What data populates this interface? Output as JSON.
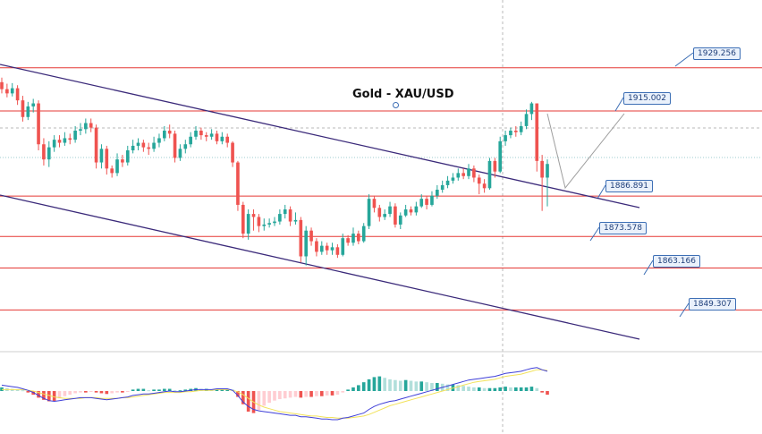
{
  "chart_data": {
    "type": "candlestick",
    "title": "Gold - XAU/USD",
    "colors": {
      "bull": "#26a69a",
      "bear": "#ef5350",
      "level": "#e53935",
      "channel": "#3b2a7a",
      "projection": "#9e9e9e",
      "macd_line": "#3f3fd8",
      "signal_line": "#f2e25a",
      "hist_bull_strong": "#26a69a",
      "hist_bull_weak": "#b2dfdb",
      "hist_bear_strong": "#ef5350",
      "hist_bear_weak": "#ffcdd2"
    },
    "levels": [
      {
        "label": "1929.256",
        "value": 1929.256
      },
      {
        "label": "1915.002",
        "value": 1915.002
      },
      {
        "label": "1886.891",
        "value": 1886.891
      },
      {
        "label": "1873.578",
        "value": 1873.578
      },
      {
        "label": "1863.166",
        "value": 1863.166
      },
      {
        "label": "1849.307",
        "value": 1849.307
      }
    ],
    "candles": [
      [
        1924.5,
        1922.2,
        1926.0,
        1920.8
      ],
      [
        1922.2,
        1920.8,
        1924.0,
        1919.5
      ],
      [
        1920.8,
        1922.5,
        1924.2,
        1919.8
      ],
      [
        1922.5,
        1918.5,
        1923.5,
        1917.0
      ],
      [
        1918.5,
        1913.0,
        1920.0,
        1911.5
      ],
      [
        1913.0,
        1916.5,
        1918.0,
        1912.0
      ],
      [
        1916.5,
        1917.5,
        1919.0,
        1914.5
      ],
      [
        1917.5,
        1904.0,
        1918.5,
        1902.0
      ],
      [
        1904.0,
        1899.0,
        1906.0,
        1897.0
      ],
      [
        1899.0,
        1903.0,
        1905.0,
        1896.5
      ],
      [
        1903.0,
        1905.5,
        1907.0,
        1901.5
      ],
      [
        1905.5,
        1904.5,
        1907.0,
        1903.0
      ],
      [
        1904.5,
        1906.0,
        1908.0,
        1903.5
      ],
      [
        1906.0,
        1905.5,
        1907.5,
        1904.0
      ],
      [
        1905.5,
        1908.5,
        1910.0,
        1904.5
      ],
      [
        1908.5,
        1909.0,
        1911.0,
        1907.0
      ],
      [
        1909.0,
        1911.0,
        1912.5,
        1907.5
      ],
      [
        1911.0,
        1909.5,
        1912.5,
        1908.0
      ],
      [
        1909.5,
        1898.0,
        1910.5,
        1896.0
      ],
      [
        1898.0,
        1902.5,
        1904.0,
        1896.0
      ],
      [
        1902.5,
        1896.0,
        1903.5,
        1894.0
      ],
      [
        1896.0,
        1894.5,
        1897.0,
        1893.0
      ],
      [
        1894.5,
        1899.0,
        1901.0,
        1893.5
      ],
      [
        1899.0,
        1898.0,
        1900.5,
        1896.5
      ],
      [
        1898.0,
        1902.0,
        1903.5,
        1897.0
      ],
      [
        1902.0,
        1903.5,
        1905.5,
        1901.0
      ],
      [
        1903.5,
        1904.5,
        1906.0,
        1902.0
      ],
      [
        1904.5,
        1903.0,
        1905.5,
        1901.5
      ],
      [
        1903.0,
        1902.5,
        1904.5,
        1900.5
      ],
      [
        1902.5,
        1904.5,
        1906.5,
        1901.5
      ],
      [
        1904.5,
        1906.0,
        1907.5,
        1903.0
      ],
      [
        1906.0,
        1908.5,
        1910.0,
        1905.0
      ],
      [
        1908.5,
        1907.5,
        1910.5,
        1906.0
      ],
      [
        1907.5,
        1899.5,
        1908.5,
        1898.0
      ],
      [
        1899.5,
        1902.5,
        1904.0,
        1898.5
      ],
      [
        1902.5,
        1904.0,
        1905.5,
        1901.0
      ],
      [
        1904.0,
        1906.5,
        1908.0,
        1903.0
      ],
      [
        1906.5,
        1908.5,
        1910.0,
        1905.5
      ],
      [
        1908.5,
        1907.0,
        1909.5,
        1905.5
      ],
      [
        1907.0,
        1906.5,
        1908.0,
        1905.0
      ],
      [
        1906.5,
        1907.5,
        1909.0,
        1905.5
      ],
      [
        1907.5,
        1905.0,
        1908.5,
        1904.0
      ],
      [
        1905.0,
        1906.5,
        1908.0,
        1904.0
      ],
      [
        1906.5,
        1904.5,
        1907.5,
        1903.0
      ],
      [
        1904.5,
        1898.0,
        1905.0,
        1896.5
      ],
      [
        1898.0,
        1884.0,
        1898.5,
        1882.0
      ],
      [
        1884.0,
        1874.5,
        1885.0,
        1873.0
      ],
      [
        1874.5,
        1881.0,
        1882.5,
        1872.5
      ],
      [
        1881.0,
        1880.0,
        1882.5,
        1875.5
      ],
      [
        1880.0,
        1877.0,
        1881.0,
        1875.0
      ],
      [
        1877.0,
        1877.5,
        1879.5,
        1875.5
      ],
      [
        1877.5,
        1878.0,
        1879.5,
        1876.5
      ],
      [
        1878.0,
        1878.5,
        1880.0,
        1877.0
      ],
      [
        1878.5,
        1881.0,
        1882.5,
        1877.5
      ],
      [
        1881.0,
        1882.5,
        1884.0,
        1879.5
      ],
      [
        1882.5,
        1878.5,
        1883.5,
        1877.0
      ],
      [
        1878.5,
        1879.0,
        1881.5,
        1877.5
      ],
      [
        1879.0,
        1867.0,
        1880.0,
        1865.0
      ],
      [
        1867.0,
        1875.5,
        1877.0,
        1864.0
      ],
      [
        1875.5,
        1872.0,
        1876.5,
        1870.5
      ],
      [
        1872.0,
        1868.5,
        1873.0,
        1867.0
      ],
      [
        1868.5,
        1870.5,
        1872.0,
        1867.5
      ],
      [
        1870.5,
        1869.0,
        1871.5,
        1867.5
      ],
      [
        1869.0,
        1870.0,
        1871.5,
        1867.5
      ],
      [
        1870.0,
        1867.5,
        1871.0,
        1866.5
      ],
      [
        1867.5,
        1873.0,
        1874.5,
        1867.0
      ],
      [
        1873.0,
        1871.5,
        1874.0,
        1870.5
      ],
      [
        1871.5,
        1874.5,
        1876.5,
        1870.5
      ],
      [
        1874.5,
        1872.0,
        1875.5,
        1871.0
      ],
      [
        1872.0,
        1877.0,
        1878.0,
        1871.5
      ],
      [
        1877.0,
        1886.0,
        1887.5,
        1876.0
      ],
      [
        1886.0,
        1883.0,
        1887.0,
        1881.5
      ],
      [
        1883.0,
        1880.0,
        1884.0,
        1878.5
      ],
      [
        1880.0,
        1881.0,
        1882.5,
        1879.0
      ],
      [
        1881.0,
        1883.5,
        1885.0,
        1880.0
      ],
      [
        1883.5,
        1877.5,
        1884.5,
        1876.5
      ],
      [
        1877.5,
        1880.5,
        1881.5,
        1876.0
      ],
      [
        1880.5,
        1882.5,
        1884.0,
        1880.0
      ],
      [
        1882.5,
        1881.5,
        1883.5,
        1880.5
      ],
      [
        1881.5,
        1883.5,
        1885.0,
        1880.5
      ],
      [
        1883.5,
        1886.0,
        1887.5,
        1883.0
      ],
      [
        1886.0,
        1884.0,
        1887.0,
        1882.5
      ],
      [
        1884.0,
        1887.0,
        1888.5,
        1883.5
      ],
      [
        1887.0,
        1889.0,
        1890.5,
        1886.0
      ],
      [
        1889.0,
        1890.5,
        1892.0,
        1888.0
      ],
      [
        1890.5,
        1892.0,
        1893.5,
        1889.5
      ],
      [
        1892.0,
        1893.0,
        1894.5,
        1891.0
      ],
      [
        1893.0,
        1894.5,
        1896.0,
        1892.0
      ],
      [
        1894.5,
        1893.5,
        1896.0,
        1892.5
      ],
      [
        1893.5,
        1896.0,
        1897.5,
        1892.5
      ],
      [
        1896.0,
        1893.0,
        1897.0,
        1891.5
      ],
      [
        1893.0,
        1891.0,
        1894.0,
        1887.5
      ],
      [
        1891.0,
        1889.5,
        1892.5,
        1888.0
      ],
      [
        1889.5,
        1898.5,
        1899.5,
        1889.0
      ],
      [
        1898.5,
        1895.0,
        1899.5,
        1893.0
      ],
      [
        1895.0,
        1905.0,
        1906.5,
        1894.5
      ],
      [
        1905.0,
        1907.0,
        1908.5,
        1903.5
      ],
      [
        1907.0,
        1908.5,
        1909.5,
        1906.0
      ],
      [
        1908.5,
        1908.0,
        1910.0,
        1906.5
      ],
      [
        1908.0,
        1910.0,
        1911.5,
        1907.0
      ],
      [
        1910.0,
        1914.0,
        1915.5,
        1909.0
      ],
      [
        1914.0,
        1917.5,
        1918.0,
        1912.0
      ],
      [
        1917.5,
        1898.5,
        1917.5,
        1895.0
      ],
      [
        1898.5,
        1893.0,
        1900.5,
        1882.0
      ],
      [
        1893.0,
        1897.5,
        1899.0,
        1883.5
      ]
    ],
    "macd": [
      0.8,
      0.7,
      0.6,
      0.5,
      0.3,
      0.1,
      -0.2,
      -0.6,
      -1.0,
      -1.3,
      -1.4,
      -1.3,
      -1.2,
      -1.1,
      -1.0,
      -0.9,
      -0.9,
      -0.9,
      -1.0,
      -1.1,
      -1.2,
      -1.1,
      -1.0,
      -0.9,
      -0.8,
      -0.6,
      -0.5,
      -0.4,
      -0.4,
      -0.3,
      -0.2,
      -0.1,
      0.0,
      -0.1,
      -0.1,
      0.0,
      0.1,
      0.2,
      0.2,
      0.2,
      0.2,
      0.3,
      0.3,
      0.3,
      0.1,
      -0.6,
      -1.5,
      -2.1,
      -2.5,
      -2.7,
      -2.8,
      -2.9,
      -3.0,
      -3.1,
      -3.2,
      -3.3,
      -3.3,
      -3.5,
      -3.5,
      -3.6,
      -3.7,
      -3.8,
      -3.8,
      -3.9,
      -3.9,
      -3.7,
      -3.6,
      -3.4,
      -3.2,
      -3.0,
      -2.5,
      -2.1,
      -1.8,
      -1.6,
      -1.4,
      -1.3,
      -1.1,
      -0.9,
      -0.7,
      -0.5,
      -0.3,
      -0.1,
      0.1,
      0.3,
      0.5,
      0.7,
      0.9,
      1.1,
      1.3,
      1.5,
      1.6,
      1.7,
      1.8,
      1.9,
      2.0,
      2.2,
      2.4,
      2.5,
      2.6,
      2.7,
      2.9,
      3.1,
      3.2,
      2.9,
      2.7
    ],
    "signal": [
      0.2,
      0.2,
      0.2,
      0.2,
      0.2,
      0.1,
      0.0,
      -0.2,
      -0.4,
      -0.6,
      -0.8,
      -0.9,
      -1.0,
      -1.0,
      -1.0,
      -1.0,
      -0.9,
      -0.9,
      -0.9,
      -1.0,
      -1.0,
      -1.0,
      -1.0,
      -0.9,
      -0.9,
      -0.8,
      -0.7,
      -0.6,
      -0.5,
      -0.4,
      -0.3,
      -0.2,
      -0.2,
      -0.2,
      -0.2,
      -0.1,
      -0.1,
      0.0,
      0.1,
      0.1,
      0.1,
      0.2,
      0.2,
      0.2,
      0.1,
      -0.1,
      -0.5,
      -1.0,
      -1.5,
      -1.9,
      -2.2,
      -2.4,
      -2.6,
      -2.8,
      -2.9,
      -3.0,
      -3.1,
      -3.2,
      -3.3,
      -3.4,
      -3.4,
      -3.5,
      -3.6,
      -3.6,
      -3.7,
      -3.7,
      -3.7,
      -3.6,
      -3.5,
      -3.4,
      -3.2,
      -2.9,
      -2.6,
      -2.3,
      -2.0,
      -1.8,
      -1.6,
      -1.4,
      -1.2,
      -1.0,
      -0.8,
      -0.6,
      -0.4,
      -0.2,
      0.0,
      0.2,
      0.4,
      0.6,
      0.8,
      1.0,
      1.2,
      1.3,
      1.4,
      1.5,
      1.6,
      1.8,
      2.0,
      2.1,
      2.2,
      2.3,
      2.5,
      2.7,
      2.9,
      2.9,
      2.8
    ],
    "histogram": [
      0.5,
      0.4,
      0.3,
      0.2,
      0.1,
      -0.2,
      -0.5,
      -0.9,
      -1.2,
      -1.4,
      -1.4,
      -1.0,
      -0.7,
      -0.5,
      -0.3,
      -0.2,
      -0.2,
      -0.1,
      -0.2,
      -0.3,
      -0.4,
      -0.3,
      -0.2,
      -0.2,
      -0.1,
      0.2,
      0.3,
      0.3,
      0.1,
      0.2,
      0.2,
      0.3,
      0.3,
      0.1,
      0.1,
      0.2,
      0.3,
      0.4,
      0.3,
      0.3,
      0.2,
      0.3,
      0.3,
      0.3,
      0.2,
      -0.8,
      -1.8,
      -2.8,
      -3.0,
      -2.6,
      -2.0,
      -1.6,
      -1.3,
      -1.1,
      -1.0,
      -0.9,
      -0.8,
      -0.9,
      -0.8,
      -0.8,
      -0.7,
      -0.7,
      -0.6,
      -0.6,
      -0.5,
      -0.2,
      0.2,
      0.5,
      0.8,
      1.2,
      1.6,
      1.9,
      2.0,
      1.8,
      1.6,
      1.5,
      1.4,
      1.5,
      1.4,
      1.3,
      1.3,
      1.2,
      1.1,
      1.1,
      1.0,
      0.9,
      0.9,
      0.8,
      0.7,
      0.6,
      0.5,
      0.5,
      0.4,
      0.4,
      0.4,
      0.5,
      0.6,
      0.5,
      0.5,
      0.5,
      0.5,
      0.6,
      0.4,
      -0.2,
      -0.5
    ]
  }
}
